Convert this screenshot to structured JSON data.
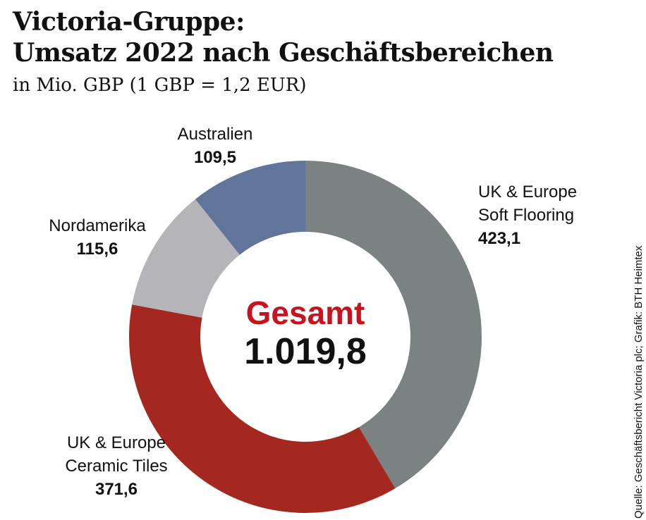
{
  "header": {
    "title_line1": "Victoria-Gruppe:",
    "title_line2": "Umsatz 2022 nach Geschäftsbereichen",
    "subtitle": "in Mio. GBP (1 GBP = 1,2 EUR)"
  },
  "center": {
    "label": "Gesamt",
    "value": "1.019,8",
    "label_color": "#c8131f"
  },
  "source": "Quelle: Geschäftsbericht Victoria plc; Grafik: BTH Heimtex",
  "chart_data": {
    "type": "pie",
    "subtype": "donut",
    "title": "Victoria-Gruppe: Umsatz 2022 nach Geschäftsbereichen",
    "unit": "Mio. GBP",
    "total_label": "Gesamt",
    "total_value": 1019.8,
    "total_display": "1.019,8",
    "start_angle_deg": 0,
    "direction": "clockwise",
    "segments": [
      {
        "id": "uk-europe-soft-flooring",
        "label_lines": [
          "UK & Europe",
          "Soft Flooring"
        ],
        "value": 423.1,
        "value_display": "423,1",
        "color": "#7b8282"
      },
      {
        "id": "uk-europe-ceramic-tiles",
        "label_lines": [
          "UK & Europe",
          "Ceramic Tiles"
        ],
        "value": 371.6,
        "value_display": "371,6",
        "color": "#a4281f"
      },
      {
        "id": "nordamerika",
        "label_lines": [
          "Nordamerika"
        ],
        "value": 115.6,
        "value_display": "115,6",
        "color": "#b5b4b9"
      },
      {
        "id": "australien",
        "label_lines": [
          "Australien"
        ],
        "value": 109.5,
        "value_display": "109,5",
        "color": "#617499"
      }
    ]
  }
}
